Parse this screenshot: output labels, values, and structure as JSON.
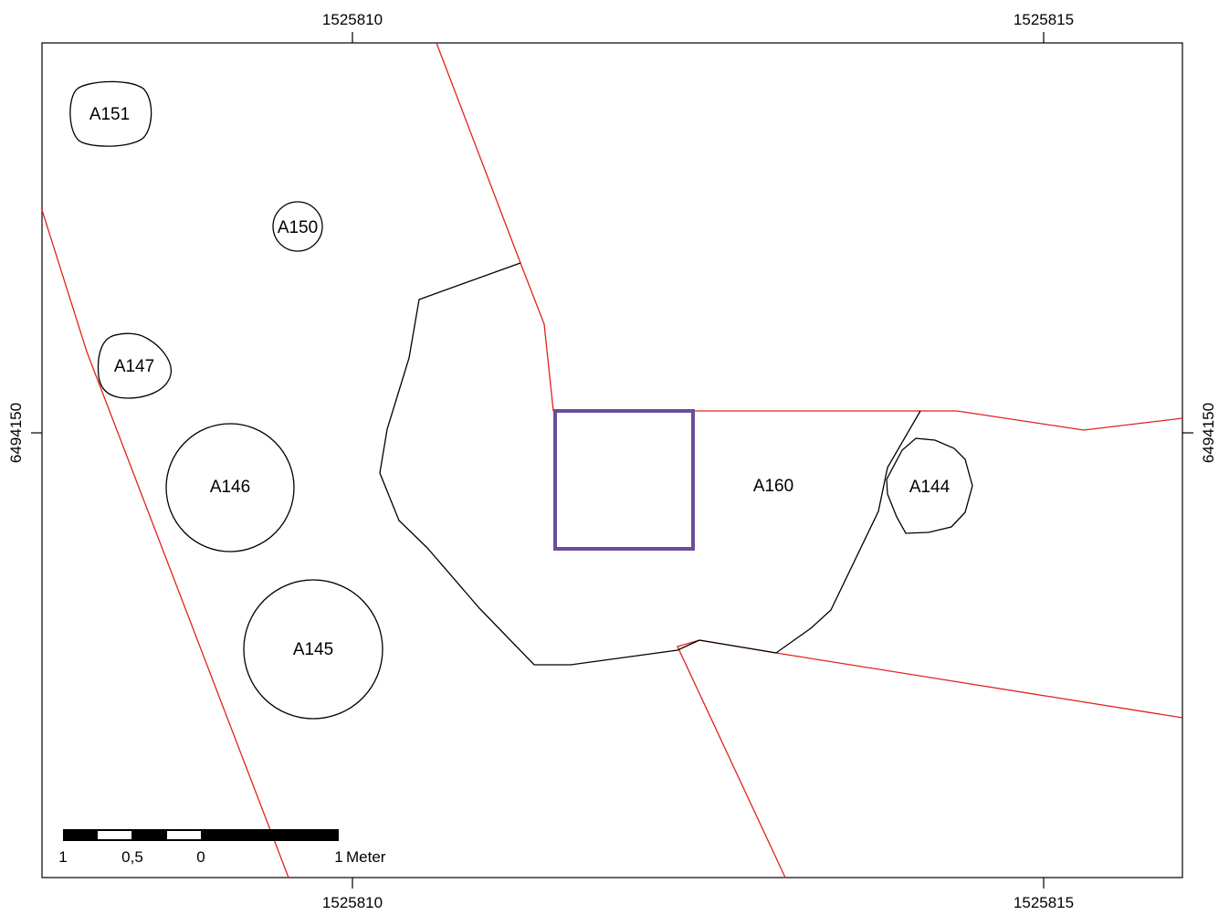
{
  "coordinates": {
    "top_left_easting": "1525810",
    "top_right_easting": "1525815",
    "bottom_left_easting": "1525810",
    "bottom_right_easting": "1525815",
    "left_northing": "6494150",
    "right_northing": "6494150"
  },
  "features": {
    "a151": "A151",
    "a150": "A150",
    "a147": "A147",
    "a146": "A146",
    "a145": "A145",
    "a160": "A160",
    "a144": "A144"
  },
  "scale_bar": {
    "label_1_left": "1",
    "label_half": "0,5",
    "label_zero": "0",
    "label_1_right": "1",
    "unit": "Meter"
  },
  "colors": {
    "boundary_lines": "#e0231c",
    "feature_outlines": "#000000",
    "sample_square": "#6b4c9a"
  }
}
